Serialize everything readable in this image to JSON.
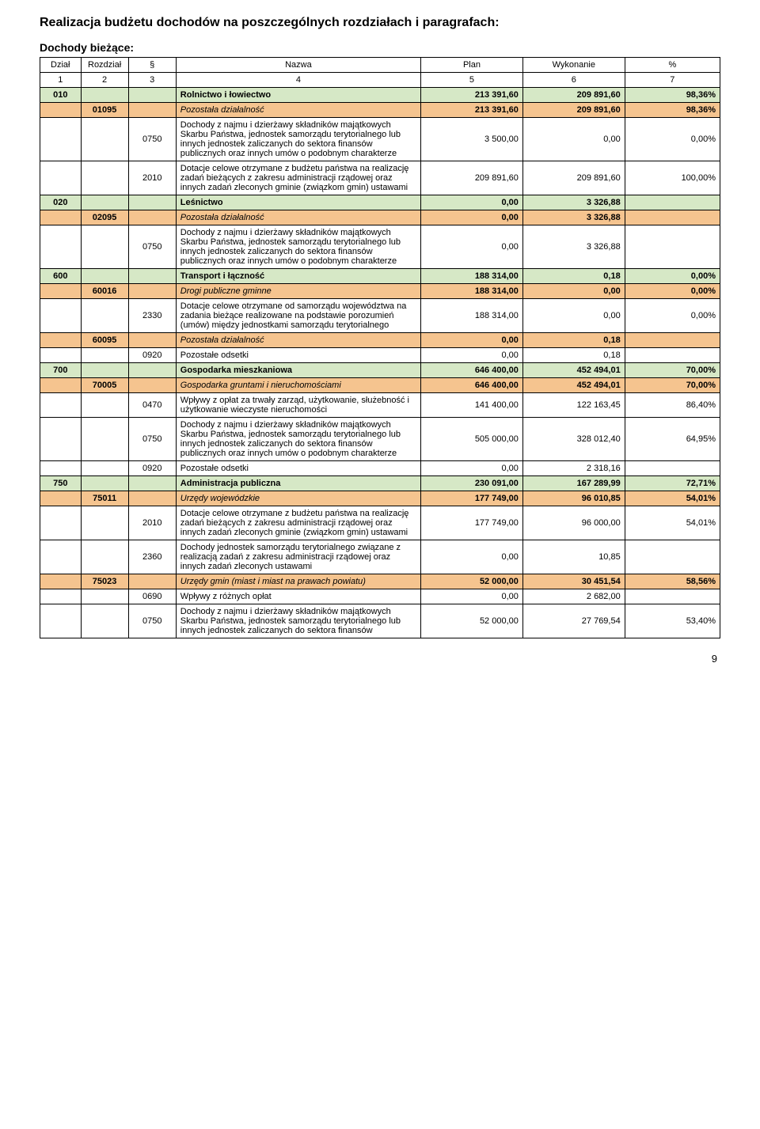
{
  "title": "Realizacja budżetu dochodów na poszczególnych rozdziałach i paragrafach:",
  "subtitle": "Dochody bieżące:",
  "headers": {
    "dzial": "Dział",
    "rozdzial": "Rozdział",
    "par": "§",
    "nazwa": "Nazwa",
    "plan": "Plan",
    "wyk": "Wykonanie",
    "pct": "%",
    "c1": "1",
    "c2": "2",
    "c3": "3",
    "c4": "4",
    "c5": "5",
    "c6": "6",
    "c7": "7"
  },
  "colors": {
    "green": "#d6e8c6",
    "orange": "#f5c48f",
    "border": "#000000",
    "bg": "#ffffff"
  },
  "typography": {
    "title_size_pt": 12,
    "body_size_pt": 8,
    "font_family": "Arial"
  },
  "page_number": "9",
  "rows": [
    {
      "type": "green",
      "dzial": "010",
      "rozd": "",
      "par": "",
      "nazwa": "Rolnictwo i łowiectwo",
      "plan": "213 391,60",
      "wyk": "209 891,60",
      "pct": "98,36%"
    },
    {
      "type": "orange",
      "dzial": "",
      "rozd": "01095",
      "par": "",
      "nazwa": "Pozostała działalność",
      "plan": "213 391,60",
      "wyk": "209 891,60",
      "pct": "98,36%",
      "italic": true
    },
    {
      "type": "plain",
      "dzial": "",
      "rozd": "",
      "par": "0750",
      "nazwa": "Dochody z najmu i dzierżawy składników majątkowych Skarbu Państwa, jednostek samorządu terytorialnego lub innych jednostek zaliczanych do sektora finansów publicznych oraz innych umów o podobnym charakterze",
      "plan": "3 500,00",
      "wyk": "0,00",
      "pct": "0,00%"
    },
    {
      "type": "plain",
      "dzial": "",
      "rozd": "",
      "par": "2010",
      "nazwa": "Dotacje celowe otrzymane z budżetu państwa na realizację zadań bieżących z zakresu administracji rządowej oraz innych zadań zleconych gminie (związkom gmin) ustawami",
      "plan": "209 891,60",
      "wyk": "209 891,60",
      "pct": "100,00%"
    },
    {
      "type": "green",
      "dzial": "020",
      "rozd": "",
      "par": "",
      "nazwa": "Leśnictwo",
      "plan": "0,00",
      "wyk": "3 326,88",
      "pct": ""
    },
    {
      "type": "orange",
      "dzial": "",
      "rozd": "02095",
      "par": "",
      "nazwa": "Pozostała działalność",
      "plan": "0,00",
      "wyk": "3 326,88",
      "pct": "",
      "italic": true
    },
    {
      "type": "plain",
      "dzial": "",
      "rozd": "",
      "par": "0750",
      "nazwa": "Dochody z najmu i dzierżawy składników majątkowych Skarbu Państwa, jednostek samorządu terytorialnego lub innych jednostek zaliczanych do sektora finansów publicznych oraz innych umów o podobnym charakterze",
      "plan": "0,00",
      "wyk": "3 326,88",
      "pct": ""
    },
    {
      "type": "green",
      "dzial": "600",
      "rozd": "",
      "par": "",
      "nazwa": "Transport i łączność",
      "plan": "188 314,00",
      "wyk": "0,18",
      "pct": "0,00%"
    },
    {
      "type": "orange",
      "dzial": "",
      "rozd": "60016",
      "par": "",
      "nazwa": "Drogi publiczne gminne",
      "plan": "188 314,00",
      "wyk": "0,00",
      "pct": "0,00%",
      "italic": true
    },
    {
      "type": "plain",
      "dzial": "",
      "rozd": "",
      "par": "2330",
      "nazwa": "Dotacje celowe otrzymane od samorządu województwa na zadania bieżące realizowane na podstawie porozumień (umów) między jednostkami samorządu terytorialnego",
      "plan": "188 314,00",
      "wyk": "0,00",
      "pct": "0,00%"
    },
    {
      "type": "orange",
      "dzial": "",
      "rozd": "60095",
      "par": "",
      "nazwa": "Pozostała działalność",
      "plan": "0,00",
      "wyk": "0,18",
      "pct": "",
      "italic": true
    },
    {
      "type": "plain",
      "dzial": "",
      "rozd": "",
      "par": "0920",
      "nazwa": "Pozostałe odsetki",
      "plan": "0,00",
      "wyk": "0,18",
      "pct": ""
    },
    {
      "type": "green",
      "dzial": "700",
      "rozd": "",
      "par": "",
      "nazwa": "Gospodarka mieszkaniowa",
      "plan": "646 400,00",
      "wyk": "452 494,01",
      "pct": "70,00%"
    },
    {
      "type": "orange",
      "dzial": "",
      "rozd": "70005",
      "par": "",
      "nazwa": "Gospodarka gruntami i nieruchomościami",
      "plan": "646 400,00",
      "wyk": "452 494,01",
      "pct": "70,00%",
      "italic": true
    },
    {
      "type": "plain",
      "dzial": "",
      "rozd": "",
      "par": "0470",
      "nazwa": "Wpływy z opłat za trwały zarząd, użytkowanie, służebność i użytkowanie wieczyste nieruchomości",
      "plan": "141 400,00",
      "wyk": "122 163,45",
      "pct": "86,40%"
    },
    {
      "type": "plain",
      "dzial": "",
      "rozd": "",
      "par": "0750",
      "nazwa": "Dochody z najmu i dzierżawy składników majątkowych Skarbu Państwa, jednostek samorządu terytorialnego lub innych jednostek zaliczanych do sektora finansów publicznych oraz innych umów o podobnym charakterze",
      "plan": "505 000,00",
      "wyk": "328 012,40",
      "pct": "64,95%"
    },
    {
      "type": "plain",
      "dzial": "",
      "rozd": "",
      "par": "0920",
      "nazwa": "Pozostałe odsetki",
      "plan": "0,00",
      "wyk": "2 318,16",
      "pct": ""
    },
    {
      "type": "green",
      "dzial": "750",
      "rozd": "",
      "par": "",
      "nazwa": "Administracja publiczna",
      "plan": "230 091,00",
      "wyk": "167 289,99",
      "pct": "72,71%"
    },
    {
      "type": "orange",
      "dzial": "",
      "rozd": "75011",
      "par": "",
      "nazwa": "Urzędy wojewódzkie",
      "plan": "177 749,00",
      "wyk": "96 010,85",
      "pct": "54,01%",
      "italic": true
    },
    {
      "type": "plain",
      "dzial": "",
      "rozd": "",
      "par": "2010",
      "nazwa": "Dotacje celowe otrzymane z budżetu państwa na realizację zadań bieżących z zakresu administracji rządowej oraz innych zadań zleconych gminie (związkom gmin) ustawami",
      "plan": "177 749,00",
      "wyk": "96 000,00",
      "pct": "54,01%"
    },
    {
      "type": "plain",
      "dzial": "",
      "rozd": "",
      "par": "2360",
      "nazwa": "Dochody jednostek samorządu terytorialnego związane z realizacją zadań z zakresu administracji rządowej oraz innych zadań zleconych ustawami",
      "plan": "0,00",
      "wyk": "10,85",
      "pct": ""
    },
    {
      "type": "orange",
      "dzial": "",
      "rozd": "75023",
      "par": "",
      "nazwa": "Urzędy gmin (miast i miast na prawach powiatu)",
      "plan": "52 000,00",
      "wyk": "30 451,54",
      "pct": "58,56%",
      "italic": true
    },
    {
      "type": "plain",
      "dzial": "",
      "rozd": "",
      "par": "0690",
      "nazwa": "Wpływy z różnych opłat",
      "plan": "0,00",
      "wyk": "2 682,00",
      "pct": ""
    },
    {
      "type": "plain",
      "dzial": "",
      "rozd": "",
      "par": "0750",
      "nazwa": "Dochody z najmu i dzierżawy składników majątkowych Skarbu Państwa, jednostek samorządu terytorialnego lub innych jednostek zaliczanych do sektora finansów",
      "plan": "52 000,00",
      "wyk": "27 769,54",
      "pct": "53,40%"
    }
  ]
}
